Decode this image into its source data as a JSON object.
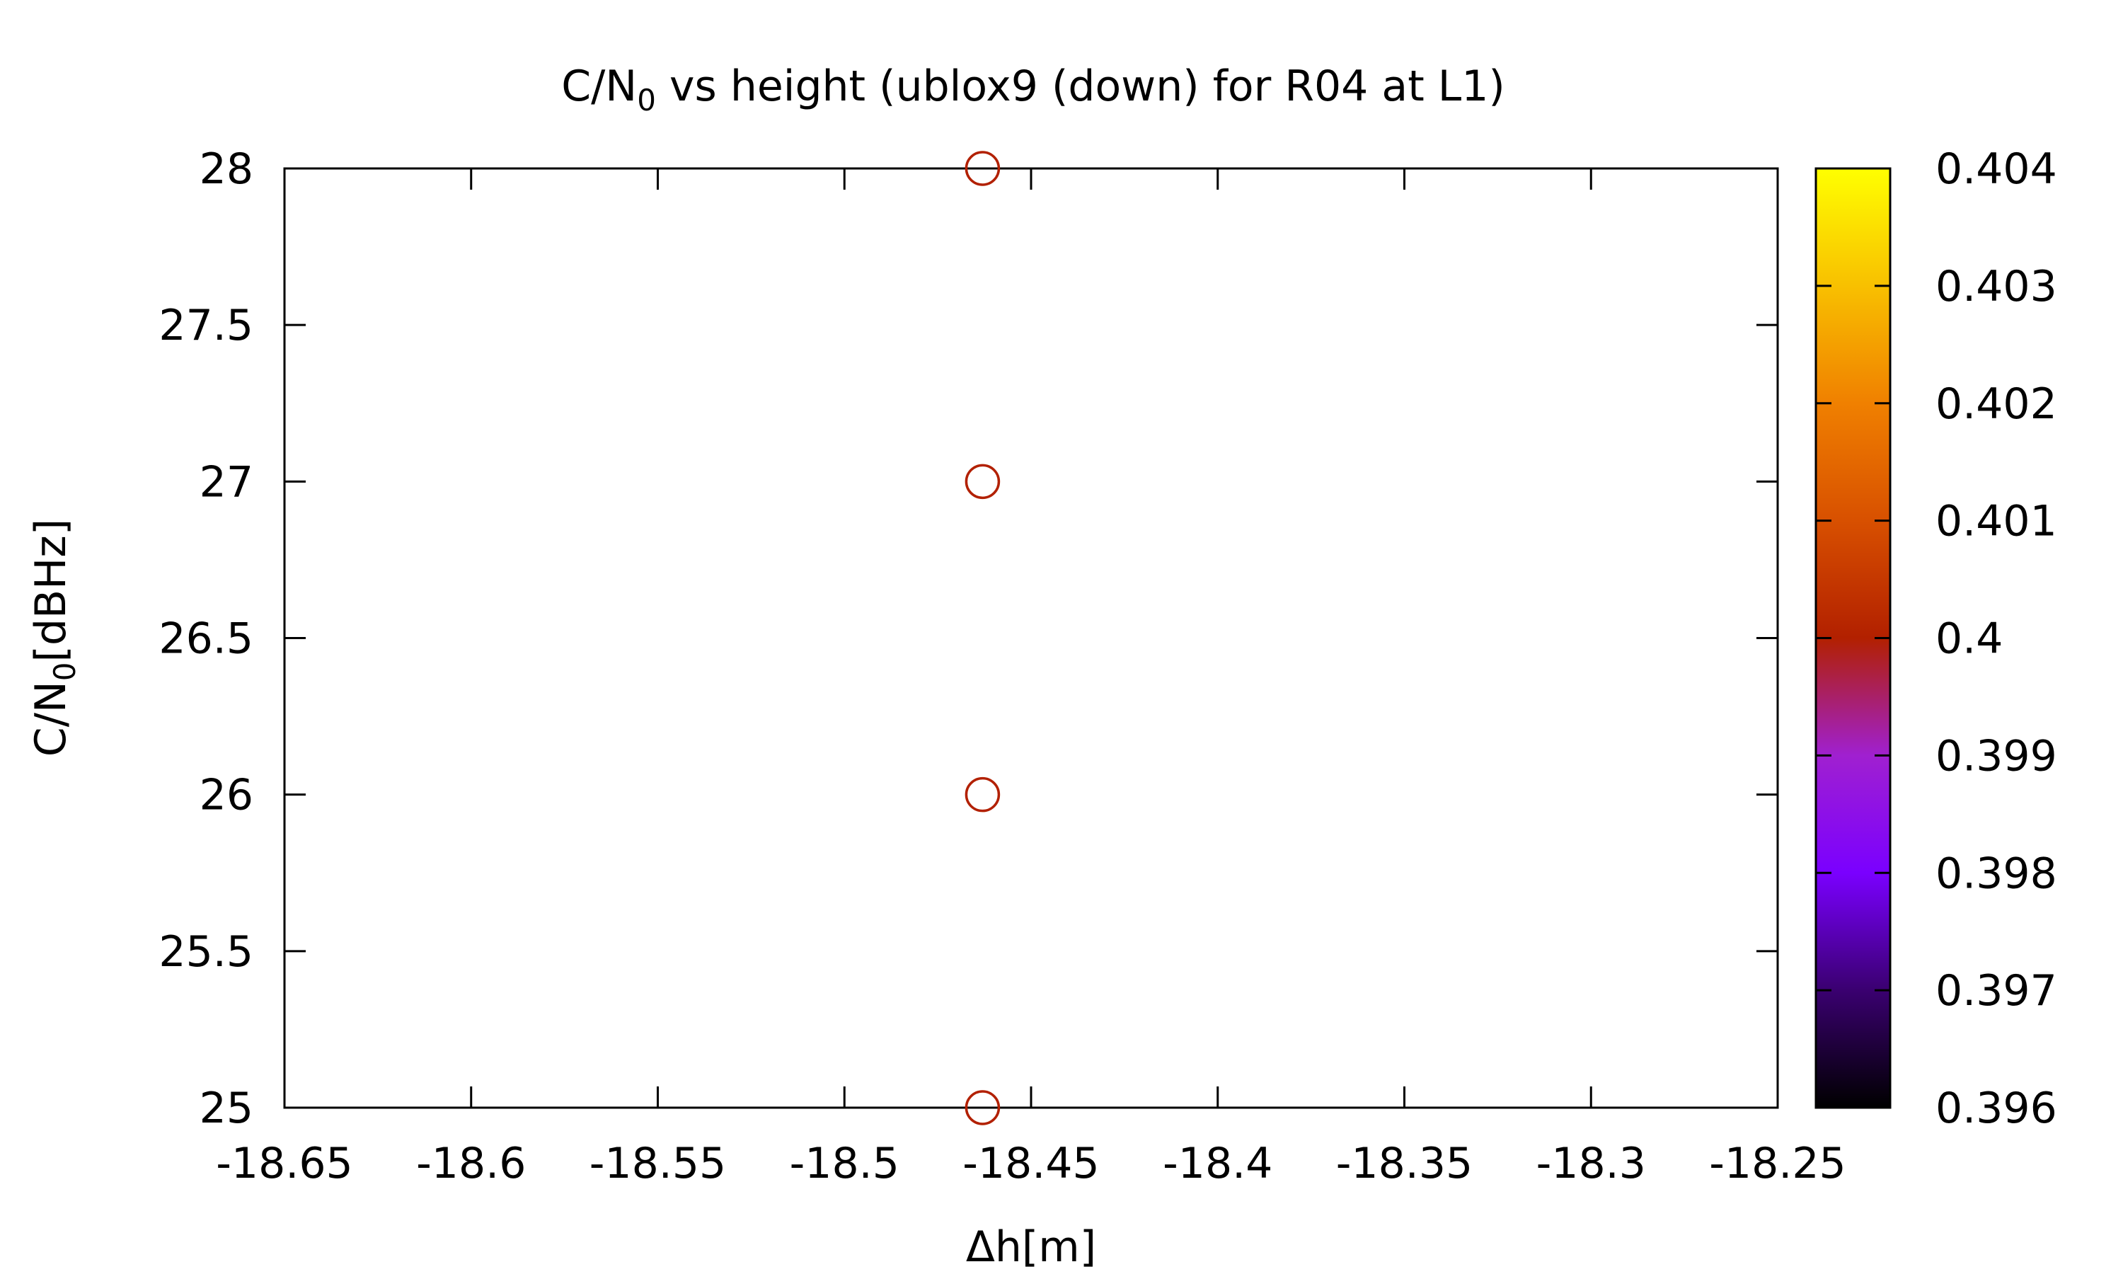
{
  "chart_data": {
    "type": "scatter",
    "title": {
      "prefix": "C/N",
      "subscript": "0",
      "suffix": " vs height (ublox9 (down) for R04 at L1)"
    },
    "xlabel": "Δh[m]",
    "ylabel": {
      "prefix": "C/N",
      "subscript": "0",
      "suffix": "[dBHz]"
    },
    "xlim": [
      -18.65,
      -18.25
    ],
    "ylim": [
      25,
      28
    ],
    "xticks": [
      -18.65,
      -18.6,
      -18.55,
      -18.5,
      -18.45,
      -18.4,
      -18.35,
      -18.3,
      -18.25
    ],
    "xtick_labels": [
      "-18.65",
      "-18.6",
      "-18.55",
      "-18.5",
      "-18.45",
      "-18.4",
      "-18.35",
      "-18.3",
      "-18.25"
    ],
    "yticks": [
      25,
      25.5,
      26,
      26.5,
      27,
      27.5,
      28
    ],
    "ytick_labels": [
      "25",
      "25.5",
      "26",
      "26.5",
      "27",
      "27.5",
      "28"
    ],
    "grid": false,
    "marker": "open-circle",
    "points": [
      {
        "x": -18.463,
        "y": 25,
        "c": 0.4
      },
      {
        "x": -18.463,
        "y": 26,
        "c": 0.4
      },
      {
        "x": -18.463,
        "y": 27,
        "c": 0.4
      },
      {
        "x": -18.463,
        "y": 28,
        "c": 0.4
      }
    ],
    "point_color": "#b22000",
    "colorbar": {
      "min": 0.396,
      "max": 0.404,
      "ticks": [
        0.396,
        0.397,
        0.398,
        0.399,
        0.4,
        0.401,
        0.402,
        0.403,
        0.404
      ],
      "tick_labels": [
        "0.396",
        "0.397",
        "0.398",
        "0.399",
        "0.4",
        "0.401",
        "0.402",
        "0.403",
        "0.404"
      ],
      "palette": [
        "#000000",
        "#3a0070",
        "#7a00ff",
        "#a020d0",
        "#b22000",
        "#d85000",
        "#f08000",
        "#f8c000",
        "#ffff00"
      ]
    }
  }
}
